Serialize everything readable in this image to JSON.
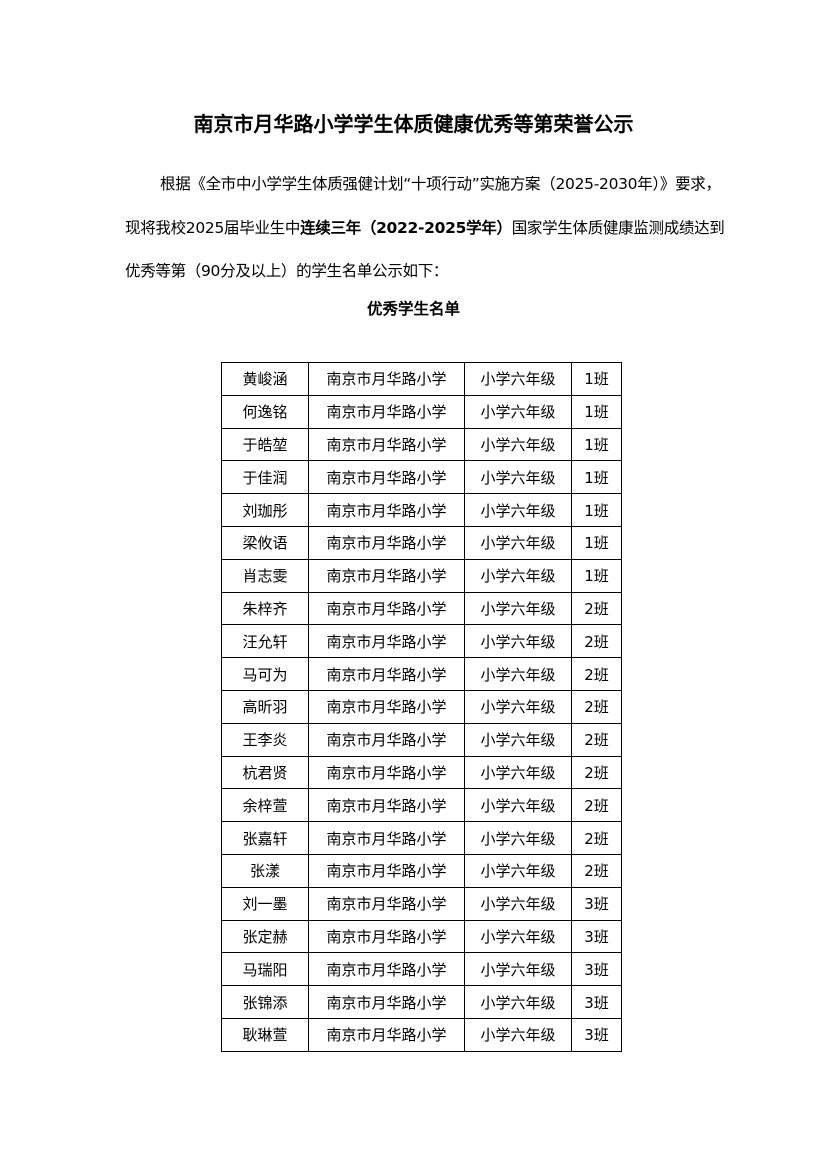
{
  "title": "南京市月华路小学学生体质健康优秀等第荣誉公示",
  "paragraph": {
    "part1": "根据《全市中小学学生体质强健计划“十项行动”实施方案（2025-2030年）》要求，现将我校2025届毕业生中",
    "bold": "连续三年（2022-2025学年）",
    "part2": "国家学生体质健康监测成绩达到优秀等第（90分及以上）的学生名单公示如下："
  },
  "subtitle": "优秀学生名单",
  "table": {
    "rows": [
      [
        "黄峻涵",
        "南京市月华路小学",
        "小学六年级",
        "1班"
      ],
      [
        "何逸铭",
        "南京市月华路小学",
        "小学六年级",
        "1班"
      ],
      [
        "于皓堃",
        "南京市月华路小学",
        "小学六年级",
        "1班"
      ],
      [
        "于佳润",
        "南京市月华路小学",
        "小学六年级",
        "1班"
      ],
      [
        "刘珈彤",
        "南京市月华路小学",
        "小学六年级",
        "1班"
      ],
      [
        "梁攸语",
        "南京市月华路小学",
        "小学六年级",
        "1班"
      ],
      [
        "肖志雯",
        "南京市月华路小学",
        "小学六年级",
        "1班"
      ],
      [
        "朱梓齐",
        "南京市月华路小学",
        "小学六年级",
        "2班"
      ],
      [
        "汪允轩",
        "南京市月华路小学",
        "小学六年级",
        "2班"
      ],
      [
        "马可为",
        "南京市月华路小学",
        "小学六年级",
        "2班"
      ],
      [
        "高昕羽",
        "南京市月华路小学",
        "小学六年级",
        "2班"
      ],
      [
        "王李炎",
        "南京市月华路小学",
        "小学六年级",
        "2班"
      ],
      [
        "杭君贤",
        "南京市月华路小学",
        "小学六年级",
        "2班"
      ],
      [
        "余梓萱",
        "南京市月华路小学",
        "小学六年级",
        "2班"
      ],
      [
        "张嘉轩",
        "南京市月华路小学",
        "小学六年级",
        "2班"
      ],
      [
        "张漾",
        "南京市月华路小学",
        "小学六年级",
        "2班"
      ],
      [
        "刘一墨",
        "南京市月华路小学",
        "小学六年级",
        "3班"
      ],
      [
        "张定赫",
        "南京市月华路小学",
        "小学六年级",
        "3班"
      ],
      [
        "马瑞阳",
        "南京市月华路小学",
        "小学六年级",
        "3班"
      ],
      [
        "张锦添",
        "南京市月华路小学",
        "小学六年级",
        "3班"
      ],
      [
        "耿琳萱",
        "南京市月华路小学",
        "小学六年级",
        "3班"
      ]
    ]
  }
}
